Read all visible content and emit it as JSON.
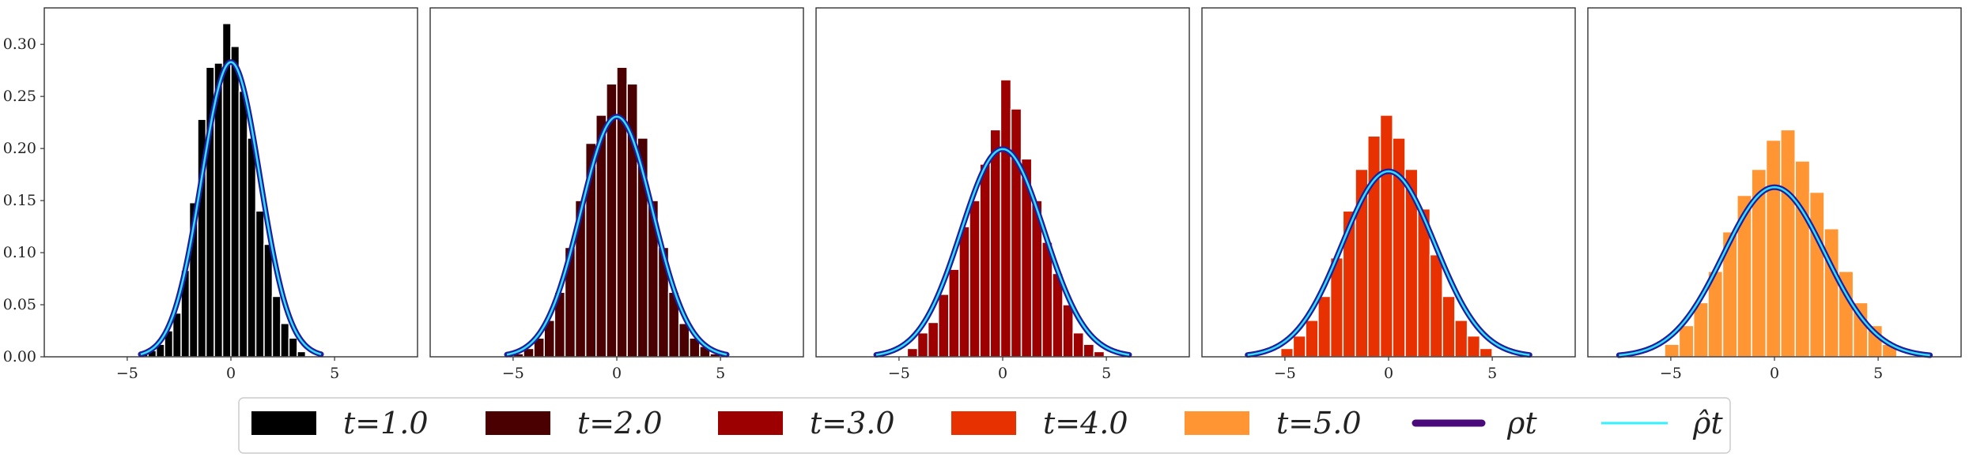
{
  "colors": {
    "rho_line": "#1f1f9e",
    "rho_hat_line": "#33e0ff",
    "legend_rho": "#4b0a7a",
    "legend_rho_hat": "#33f2ff"
  },
  "legend": {
    "items": [
      {
        "label": "t=1.0",
        "kind": "patch",
        "color": "#000000"
      },
      {
        "label": "t=2.0",
        "kind": "patch",
        "color": "#4a0000"
      },
      {
        "label": "t=3.0",
        "kind": "patch",
        "color": "#9c0000"
      },
      {
        "label": "t=4.0",
        "kind": "patch",
        "color": "#e83100"
      },
      {
        "label": "t=5.0",
        "kind": "patch",
        "color": "#ff9633"
      },
      {
        "label": "ρt",
        "kind": "line",
        "color": "#4b0a7a"
      },
      {
        "label": "ρ̂t",
        "kind": "line",
        "color": "#33f2ff"
      }
    ]
  },
  "chart_data": [
    {
      "type": "bar",
      "panel": "t=1.0",
      "xlim": [
        -9,
        9
      ],
      "ylim": [
        0,
        0.335
      ],
      "xticks": [
        -5,
        0,
        5
      ],
      "yticks": [
        0.0,
        0.05,
        0.1,
        0.15,
        0.2,
        0.25,
        0.3
      ],
      "ytick_labels": [
        "0.00",
        "0.05",
        "0.10",
        "0.15",
        "0.20",
        "0.25",
        "0.30"
      ],
      "bar_color": "#000000",
      "bin_edges": [
        -4.4,
        -4.0,
        -3.6,
        -3.2,
        -2.8,
        -2.4,
        -2.0,
        -1.6,
        -1.2,
        -0.8,
        -0.4,
        0.0,
        0.4,
        0.8,
        1.2,
        1.6,
        2.0,
        2.4,
        2.8,
        3.2,
        3.6
      ],
      "values": [
        0.003,
        0.006,
        0.012,
        0.025,
        0.042,
        0.083,
        0.148,
        0.228,
        0.278,
        0.282,
        0.32,
        0.298,
        0.255,
        0.21,
        0.14,
        0.108,
        0.058,
        0.032,
        0.018,
        0.005
      ],
      "curve_sigma": 1.41,
      "curve_xrange": [
        -4.35,
        4.35
      ]
    },
    {
      "type": "bar",
      "panel": "t=2.0",
      "xlim": [
        -9,
        9
      ],
      "ylim": [
        0,
        0.335
      ],
      "xticks": [
        -5,
        0,
        5
      ],
      "bar_color": "#4a0000",
      "bin_edges": [
        -5.0,
        -4.5,
        -4.0,
        -3.5,
        -3.0,
        -2.5,
        -2.0,
        -1.5,
        -1.0,
        -0.5,
        0.0,
        0.5,
        1.0,
        1.5,
        2.0,
        2.5,
        3.0,
        3.5,
        4.0,
        4.5,
        5.0
      ],
      "values": [
        0.003,
        0.008,
        0.018,
        0.035,
        0.062,
        0.105,
        0.15,
        0.205,
        0.232,
        0.262,
        0.278,
        0.262,
        0.21,
        0.15,
        0.105,
        0.062,
        0.032,
        0.018,
        0.01,
        0.003
      ],
      "curve_sigma": 1.73,
      "curve_xrange": [
        -5.3,
        5.3
      ]
    },
    {
      "type": "bar",
      "panel": "t=3.0",
      "xlim": [
        -9,
        9
      ],
      "ylim": [
        0,
        0.335
      ],
      "xticks": [
        -5,
        0,
        5
      ],
      "bar_color": "#9c0000",
      "bin_edges": [
        -4.6,
        -4.1,
        -3.6,
        -3.1,
        -2.6,
        -2.1,
        -1.6,
        -1.1,
        -0.6,
        -0.1,
        0.4,
        0.9,
        1.4,
        1.9,
        2.4,
        2.9,
        3.4,
        3.9,
        4.4,
        4.9
      ],
      "values": [
        0.008,
        0.023,
        0.033,
        0.06,
        0.084,
        0.125,
        0.15,
        0.185,
        0.218,
        0.266,
        0.238,
        0.19,
        0.15,
        0.11,
        0.08,
        0.05,
        0.023,
        0.012,
        0.005
      ],
      "curve_sigma": 2.0,
      "curve_xrange": [
        -6.1,
        6.1
      ]
    },
    {
      "type": "bar",
      "panel": "t=4.0",
      "xlim": [
        -9,
        9
      ],
      "ylim": [
        0,
        0.335
      ],
      "xticks": [
        -5,
        0,
        5
      ],
      "bar_color": "#e83100",
      "bin_edges": [
        -5.2,
        -4.6,
        -4.0,
        -3.4,
        -2.8,
        -2.2,
        -1.6,
        -1.0,
        -0.4,
        0.2,
        0.8,
        1.4,
        2.0,
        2.6,
        3.2,
        3.8,
        4.4,
        5.0
      ],
      "values": [
        0.008,
        0.02,
        0.035,
        0.058,
        0.095,
        0.14,
        0.18,
        0.212,
        0.232,
        0.21,
        0.18,
        0.142,
        0.098,
        0.058,
        0.035,
        0.02,
        0.008
      ],
      "curve_sigma": 2.24,
      "curve_xrange": [
        -6.8,
        6.8
      ]
    },
    {
      "type": "bar",
      "panel": "t=5.0",
      "xlim": [
        -9,
        9
      ],
      "ylim": [
        0,
        0.335
      ],
      "xticks": [
        -5,
        0,
        5
      ],
      "bar_color": "#ff9633",
      "bin_edges": [
        -5.3,
        -4.6,
        -3.9,
        -3.2,
        -2.5,
        -1.8,
        -1.1,
        -0.4,
        0.3,
        1.0,
        1.7,
        2.4,
        3.1,
        3.8,
        4.5,
        5.2,
        5.9
      ],
      "values": [
        0.012,
        0.03,
        0.052,
        0.082,
        0.12,
        0.155,
        0.18,
        0.208,
        0.218,
        0.188,
        0.158,
        0.123,
        0.082,
        0.052,
        0.03,
        0.012
      ],
      "curve_sigma": 2.45,
      "curve_xrange": [
        -7.5,
        7.5
      ]
    }
  ]
}
